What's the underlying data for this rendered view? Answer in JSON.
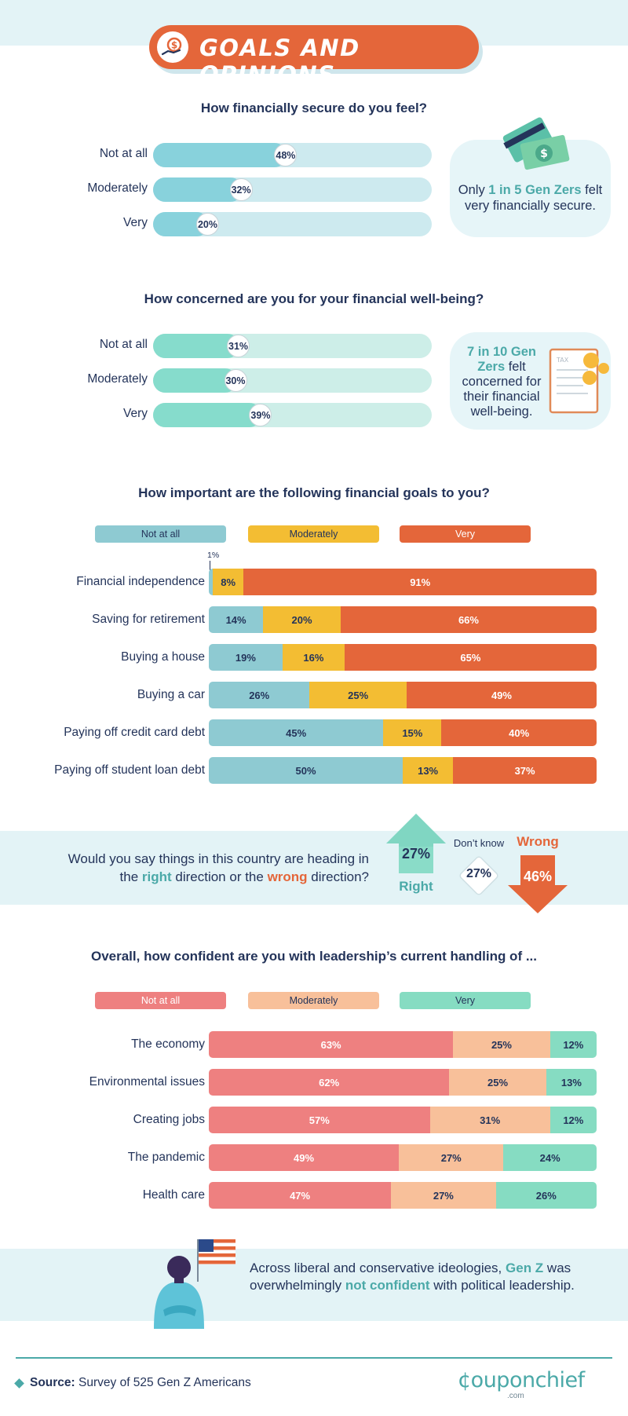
{
  "header": {
    "title": "GOALS AND OPINIONS"
  },
  "colors": {
    "teal_bar": "#88d2dc",
    "teal_track": "#cdeaef",
    "mint_bar": "#86dccc",
    "mint_track": "#cdeee8",
    "not_at_all_goals": "#8ecad2",
    "moderately_goals": "#f3bd33",
    "very_goals": "#e4663a",
    "not_at_all_conf": "#ee8080",
    "moderately_conf": "#f8c09a",
    "very_conf": "#86dcc2",
    "accent_teal": "#4ba9a8",
    "accent_orange": "#e4663a"
  },
  "secure": {
    "question": "How financially secure do you feel?",
    "callout": {
      "pre": "Only ",
      "highlight": "1 in 5 Gen Zers",
      "post": " felt very financially secure."
    }
  },
  "concern": {
    "question": "How concerned are you for your financial well-being?",
    "callout": {
      "highlight": "7 in 10 Gen Zers",
      "post": " felt concerned for their financial well-being."
    }
  },
  "goals": {
    "question": "How important are the following financial goals to you?",
    "legend": [
      "Not at all",
      "Moderately",
      "Very"
    ],
    "small_note": "1%"
  },
  "direction": {
    "question_parts": [
      "Would you say things in this country are heading in the ",
      "right",
      " direction or the ",
      "wrong",
      " direction?"
    ],
    "right_label": "Right",
    "right_value": "27%",
    "dontknow_label": "Don’t know",
    "dontknow_value": "27%",
    "wrong_label": "Wrong",
    "wrong_value": "46%"
  },
  "confidence": {
    "question": "Overall, how confident are you with leadership’s current handling of ...",
    "legend": [
      "Not at all",
      "Moderately",
      "Very"
    ]
  },
  "bottom_note": {
    "pre": "Across liberal and conservative ideologies, ",
    "highlight1": "Gen Z",
    "mid": " was overwhelmingly ",
    "highlight2": "not confident",
    "post": " with political leadership."
  },
  "footer": {
    "source_label": "Source:",
    "source_text": " Survey of 525 Gen Z Americans",
    "logo_main": "¢ouponchief",
    "logo_sub": ".com"
  },
  "chart_data": [
    {
      "type": "bar",
      "title": "How financially secure do you feel?",
      "categories": [
        "Not at all",
        "Moderately",
        "Very"
      ],
      "values": [
        48,
        32,
        20
      ],
      "labels": [
        "48%",
        "32%",
        "20%"
      ]
    },
    {
      "type": "bar",
      "title": "How concerned are you for your financial well-being?",
      "categories": [
        "Not at all",
        "Moderately",
        "Very"
      ],
      "values": [
        31,
        30,
        39
      ],
      "labels": [
        "31%",
        "30%",
        "39%"
      ]
    },
    {
      "type": "bar",
      "title": "How important are the following financial goals to you?",
      "stacked": true,
      "categories": [
        "Financial independence",
        "Saving for retirement",
        "Buying a house",
        "Buying a car",
        "Paying off credit card debt",
        "Paying off student loan debt"
      ],
      "series": [
        {
          "name": "Not at all",
          "values": [
            1,
            14,
            19,
            26,
            45,
            50
          ],
          "labels": [
            "",
            "14%",
            "19%",
            "26%",
            "45%",
            "50%"
          ]
        },
        {
          "name": "Moderately",
          "values": [
            8,
            20,
            16,
            25,
            15,
            13
          ],
          "labels": [
            "8%",
            "20%",
            "16%",
            "25%",
            "15%",
            "13%"
          ]
        },
        {
          "name": "Very",
          "values": [
            91,
            66,
            65,
            49,
            40,
            37
          ],
          "labels": [
            "91%",
            "66%",
            "65%",
            "49%",
            "40%",
            "37%"
          ]
        }
      ]
    },
    {
      "type": "bar",
      "title": "Would you say things in this country are heading in the right direction or the wrong direction?",
      "categories": [
        "Right",
        "Don’t know",
        "Wrong"
      ],
      "values": [
        27,
        27,
        46
      ]
    },
    {
      "type": "bar",
      "title": "Overall, how confident are you with leadership’s current handling of ...",
      "stacked": true,
      "categories": [
        "The economy",
        "Environmental issues",
        "Creating jobs",
        "The pandemic",
        "Health care"
      ],
      "series": [
        {
          "name": "Not at all",
          "values": [
            63,
            62,
            57,
            49,
            47
          ],
          "labels": [
            "63%",
            "62%",
            "57%",
            "49%",
            "47%"
          ]
        },
        {
          "name": "Moderately",
          "values": [
            25,
            25,
            31,
            27,
            27
          ],
          "labels": [
            "25%",
            "25%",
            "31%",
            "27%",
            "27%"
          ]
        },
        {
          "name": "Very",
          "values": [
            12,
            13,
            12,
            24,
            26
          ],
          "labels": [
            "12%",
            "13%",
            "12%",
            "24%",
            "26%"
          ]
        }
      ]
    }
  ]
}
